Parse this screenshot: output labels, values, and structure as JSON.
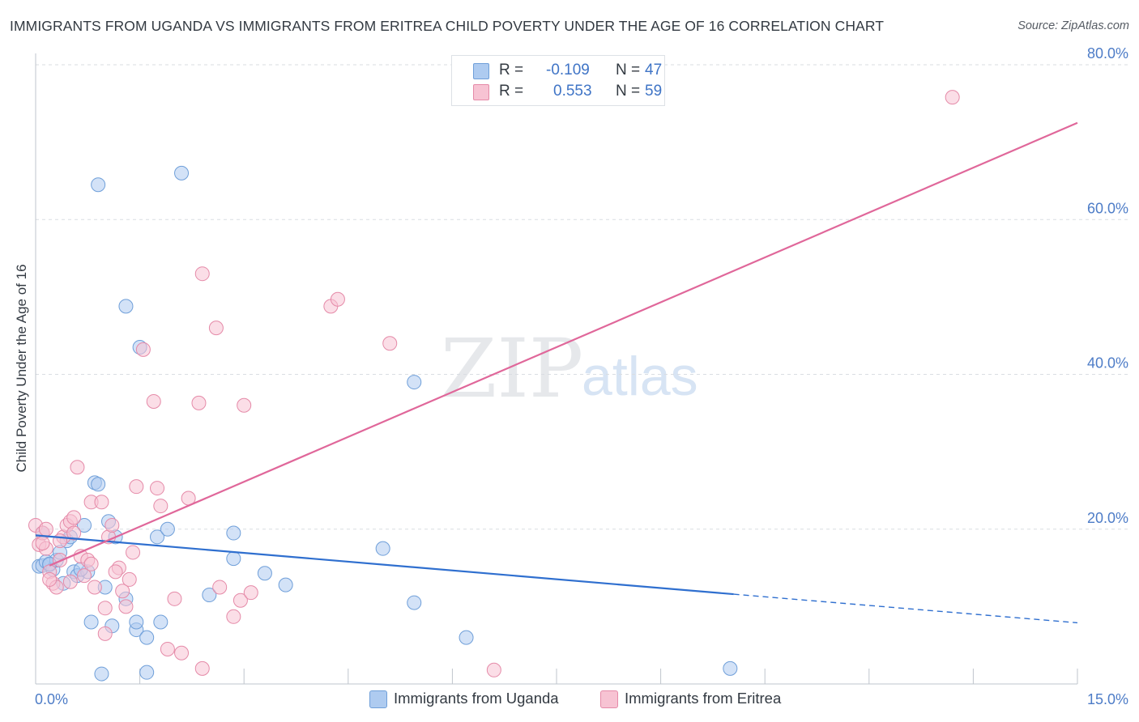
{
  "chart_data": {
    "type": "scatter",
    "title": "IMMIGRANTS FROM UGANDA VS IMMIGRANTS FROM ERITREA CHILD POVERTY UNDER THE AGE OF 16 CORRELATION CHART",
    "source": "Source: ZipAtlas.com",
    "xlabel": "",
    "ylabel": "Child Poverty Under the Age of 16",
    "xlim": [
      0,
      15
    ],
    "ylim": [
      0,
      80
    ],
    "x_tick_labels": [
      "0.0%",
      "15.0%"
    ],
    "y_tick_labels": [
      "20.0%",
      "40.0%",
      "60.0%",
      "80.0%"
    ],
    "y_ticks": [
      20,
      40,
      60,
      80
    ],
    "watermark": {
      "zip": "ZIP",
      "atlas": "atlas"
    },
    "legend": {
      "r_label": "R =",
      "n_label": "N =",
      "entries": [
        {
          "name": "Immigrants from Uganda",
          "r": "-0.109",
          "n": "47",
          "color": "#aecbf0",
          "stroke": "#6f9fd9"
        },
        {
          "name": "Immigrants from Eritrea",
          "r": "0.553",
          "n": "59",
          "color": "#f7c3d3",
          "stroke": "#e58aa8"
        }
      ]
    },
    "series": [
      {
        "name": "Immigrants from Uganda",
        "color": "#aecbf0",
        "stroke": "#6f9fd9",
        "line_color": "#2f6fcf",
        "trend": {
          "x0": 0,
          "y0": 19.2,
          "x1": 10.05,
          "y1": 11.6,
          "dash_to_x": 15,
          "dash_to_y": 7.9
        },
        "points": [
          [
            0.05,
            15.2
          ],
          [
            0.1,
            15.3
          ],
          [
            0.15,
            15.8
          ],
          [
            0.2,
            15.4
          ],
          [
            0.25,
            14.8
          ],
          [
            0.3,
            16.0
          ],
          [
            0.35,
            17.0
          ],
          [
            0.4,
            13.0
          ],
          [
            0.45,
            18.5
          ],
          [
            0.5,
            19.0
          ],
          [
            0.55,
            14.5
          ],
          [
            0.6,
            14.0
          ],
          [
            0.7,
            20.5
          ],
          [
            0.75,
            14.5
          ],
          [
            0.8,
            8.0
          ],
          [
            0.85,
            26.0
          ],
          [
            0.9,
            25.8
          ],
          [
            1.0,
            12.5
          ],
          [
            1.05,
            21.0
          ],
          [
            1.1,
            7.5
          ],
          [
            1.15,
            19.0
          ],
          [
            1.3,
            11.0
          ],
          [
            1.45,
            7.0
          ],
          [
            1.45,
            8.0
          ],
          [
            1.6,
            1.5
          ],
          [
            1.6,
            6.0
          ],
          [
            1.75,
            19.0
          ],
          [
            1.8,
            8.0
          ],
          [
            1.9,
            20.0
          ],
          [
            2.1,
            66.0
          ],
          [
            2.5,
            11.5
          ],
          [
            2.85,
            19.5
          ],
          [
            2.85,
            16.2
          ],
          [
            3.3,
            14.3
          ],
          [
            3.6,
            12.8
          ],
          [
            5.45,
            39.0
          ],
          [
            5.45,
            10.5
          ],
          [
            6.2,
            6.0
          ],
          [
            10.0,
            2.0
          ],
          [
            0.9,
            64.5
          ],
          [
            1.3,
            48.8
          ],
          [
            1.5,
            43.5
          ],
          [
            0.95,
            1.3
          ],
          [
            0.1,
            19.5
          ],
          [
            0.65,
            14.8
          ],
          [
            0.2,
            15.5
          ],
          [
            5.0,
            17.5
          ]
        ]
      },
      {
        "name": "Immigrants from Eritrea",
        "color": "#f7c3d3",
        "stroke": "#e58aa8",
        "line_color": "#e0679a",
        "trend": {
          "x0": 0.2,
          "y0": 15.3,
          "x1": 15,
          "y1": 72.5
        },
        "points": [
          [
            0.0,
            20.5
          ],
          [
            0.05,
            18.0
          ],
          [
            0.1,
            19.5
          ],
          [
            0.15,
            20.0
          ],
          [
            0.2,
            14.5
          ],
          [
            0.25,
            13.0
          ],
          [
            0.3,
            12.5
          ],
          [
            0.35,
            16.0
          ],
          [
            0.4,
            19.0
          ],
          [
            0.45,
            20.5
          ],
          [
            0.5,
            21.0
          ],
          [
            0.55,
            19.5
          ],
          [
            0.6,
            28.0
          ],
          [
            0.65,
            16.5
          ],
          [
            0.7,
            14.0
          ],
          [
            0.75,
            16.0
          ],
          [
            0.8,
            23.5
          ],
          [
            0.85,
            12.5
          ],
          [
            0.95,
            23.5
          ],
          [
            1.0,
            6.5
          ],
          [
            1.05,
            19.0
          ],
          [
            1.1,
            20.5
          ],
          [
            1.2,
            15.0
          ],
          [
            1.25,
            12.0
          ],
          [
            1.3,
            10.0
          ],
          [
            1.35,
            13.5
          ],
          [
            1.4,
            17.0
          ],
          [
            1.45,
            25.5
          ],
          [
            1.55,
            43.2
          ],
          [
            1.7,
            36.5
          ],
          [
            1.75,
            25.3
          ],
          [
            1.8,
            23.0
          ],
          [
            1.9,
            4.5
          ],
          [
            2.0,
            11.0
          ],
          [
            2.1,
            4.0
          ],
          [
            2.2,
            24.0
          ],
          [
            2.35,
            36.3
          ],
          [
            2.4,
            53.0
          ],
          [
            2.6,
            46.0
          ],
          [
            2.65,
            12.5
          ],
          [
            2.85,
            8.7
          ],
          [
            2.95,
            10.8
          ],
          [
            3.0,
            36.0
          ],
          [
            3.1,
            11.8
          ],
          [
            4.25,
            48.8
          ],
          [
            4.35,
            49.7
          ],
          [
            5.1,
            44.0
          ],
          [
            6.6,
            1.8
          ],
          [
            13.2,
            75.8
          ],
          [
            0.2,
            13.5
          ],
          [
            0.5,
            13.2
          ],
          [
            0.15,
            17.5
          ],
          [
            0.35,
            18.5
          ],
          [
            2.4,
            2.0
          ],
          [
            0.1,
            18.2
          ],
          [
            0.55,
            21.5
          ],
          [
            0.8,
            15.5
          ],
          [
            1.0,
            9.8
          ],
          [
            1.15,
            14.5
          ]
        ]
      }
    ]
  }
}
